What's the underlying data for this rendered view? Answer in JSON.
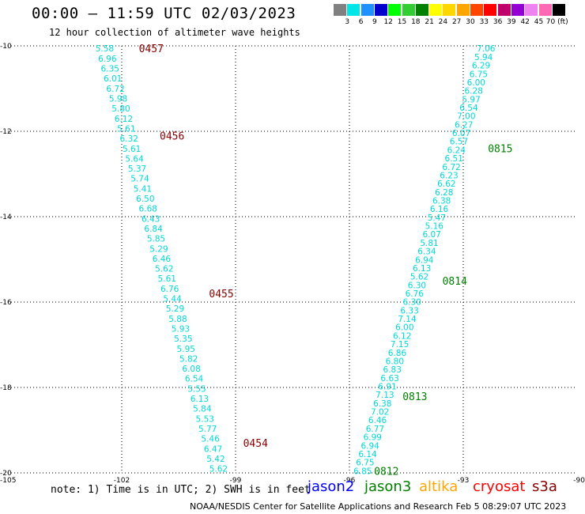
{
  "header": {
    "title": "00:00 – 11:59 UTC 02/03/2023",
    "subtitle": "12 hour collection of altimeter wave heights"
  },
  "colorbar": {
    "labels": [
      "3",
      "6",
      "9",
      "12",
      "15",
      "18",
      "21",
      "24",
      "27",
      "30",
      "33",
      "36",
      "39",
      "42",
      "45",
      "70 (ft)"
    ],
    "colors": [
      "#808080",
      "#00e5e5",
      "#1e90ff",
      "#0000cd",
      "#00ff00",
      "#32cd32",
      "#008000",
      "#ffff00",
      "#ffd700",
      "#ffa500",
      "#ff4500",
      "#ff0000",
      "#c0006a",
      "#9400d3",
      "#ee82ee",
      "#ff69b4",
      "#000000"
    ]
  },
  "footer": {
    "note": "note: 1) Time is in UTC; 2) SWH is in feet",
    "credit": "NOAA/NESDIS Center for Satellite Applications and Research   Feb  5 08:29:07 UTC 2023",
    "legend": [
      {
        "name": "jason2",
        "color": "#0000ff"
      },
      {
        "name": "jason3",
        "color": "#008000"
      },
      {
        "name": "altika",
        "color": "#ffa500"
      },
      {
        "name": "cryosat",
        "color": "#ff0000"
      },
      {
        "name": "s3a",
        "color": "#8b0000"
      }
    ]
  },
  "chart_data": {
    "type": "scatter",
    "xlim": [
      -105,
      -90
    ],
    "ylim": [
      -20,
      -10
    ],
    "x_ticks": [
      -105,
      -102,
      -99,
      -96,
      -93,
      -90
    ],
    "x_tick_labels": [
      "-105",
      "-102",
      "-99",
      "-96",
      "-93",
      "-90"
    ],
    "y_ticks": [
      -10,
      -12,
      -14,
      -16,
      -18,
      -20
    ],
    "y_tick_labels": [
      "-10",
      "-12",
      "-14",
      "-16",
      "-18",
      "-20"
    ],
    "grid": true,
    "value_color": "#00d8d8",
    "series": [
      {
        "start": [
          -102.45,
          -10.06
        ],
        "end": [
          -99.45,
          -19.9
        ],
        "values": [
          "5.58",
          "6.96",
          "6.35",
          "6.01",
          "6.72",
          "5.98",
          "5.80",
          "6.12",
          "5.61",
          "6.32",
          "5.61",
          "5.64",
          "5.37",
          "5.74",
          "5.41",
          "6.50",
          "6.68",
          "6.43",
          "6.84",
          "5.85",
          "5.29",
          "6.46",
          "5.62",
          "5.61",
          "6.76",
          "5.44",
          "5.29",
          "5.88",
          "5.93",
          "5.35",
          "5.95",
          "5.82",
          "6.08",
          "6.54",
          "5.55",
          "6.13",
          "5.84",
          "5.53",
          "5.77",
          "5.46",
          "6.47",
          "5.42",
          "5.62"
        ],
        "time_labels": [
          {
            "text": "0457",
            "x": -101.55,
            "y": -10.06
          },
          {
            "text": "0456",
            "x": -101.0,
            "y": -12.1
          },
          {
            "text": "0455",
            "x": -99.7,
            "y": -15.8
          },
          {
            "text": "0454",
            "x": -98.8,
            "y": -19.3
          }
        ],
        "time_label_color": "#8b0000"
      },
      {
        "start": [
          -92.4,
          -10.06
        ],
        "end": [
          -95.65,
          -19.95
        ],
        "values": [
          "7.06",
          "5.94",
          "6.29",
          "6.75",
          "6.00",
          "6.28",
          "5.97",
          "6.54",
          "7.00",
          "6.27",
          "6.07",
          "6.57",
          "6.24",
          "6.51",
          "6.72",
          "6.23",
          "6.62",
          "6.28",
          "6.38",
          "6.16",
          "5.47",
          "5.16",
          "6.07",
          "5.81",
          "6.34",
          "6.94",
          "6.13",
          "5.62",
          "6.30",
          "6.76",
          "6.30",
          "6.33",
          "7.14",
          "6.00",
          "6.12",
          "7.15",
          "6.86",
          "6.80",
          "6.83",
          "6.63",
          "6.91",
          "7.13",
          "6.38",
          "7.02",
          "6.46",
          "6.77",
          "6.99",
          "6.94",
          "6.14",
          "6.75",
          "6.85"
        ],
        "time_labels": [
          {
            "text": "0815",
            "x": -92.35,
            "y": -12.4
          },
          {
            "text": "0814",
            "x": -93.55,
            "y": -15.5
          },
          {
            "text": "0813",
            "x": -94.6,
            "y": -18.2
          },
          {
            "text": "0812",
            "x": -95.35,
            "y": -19.95
          }
        ],
        "time_label_color": "#008000"
      }
    ]
  }
}
